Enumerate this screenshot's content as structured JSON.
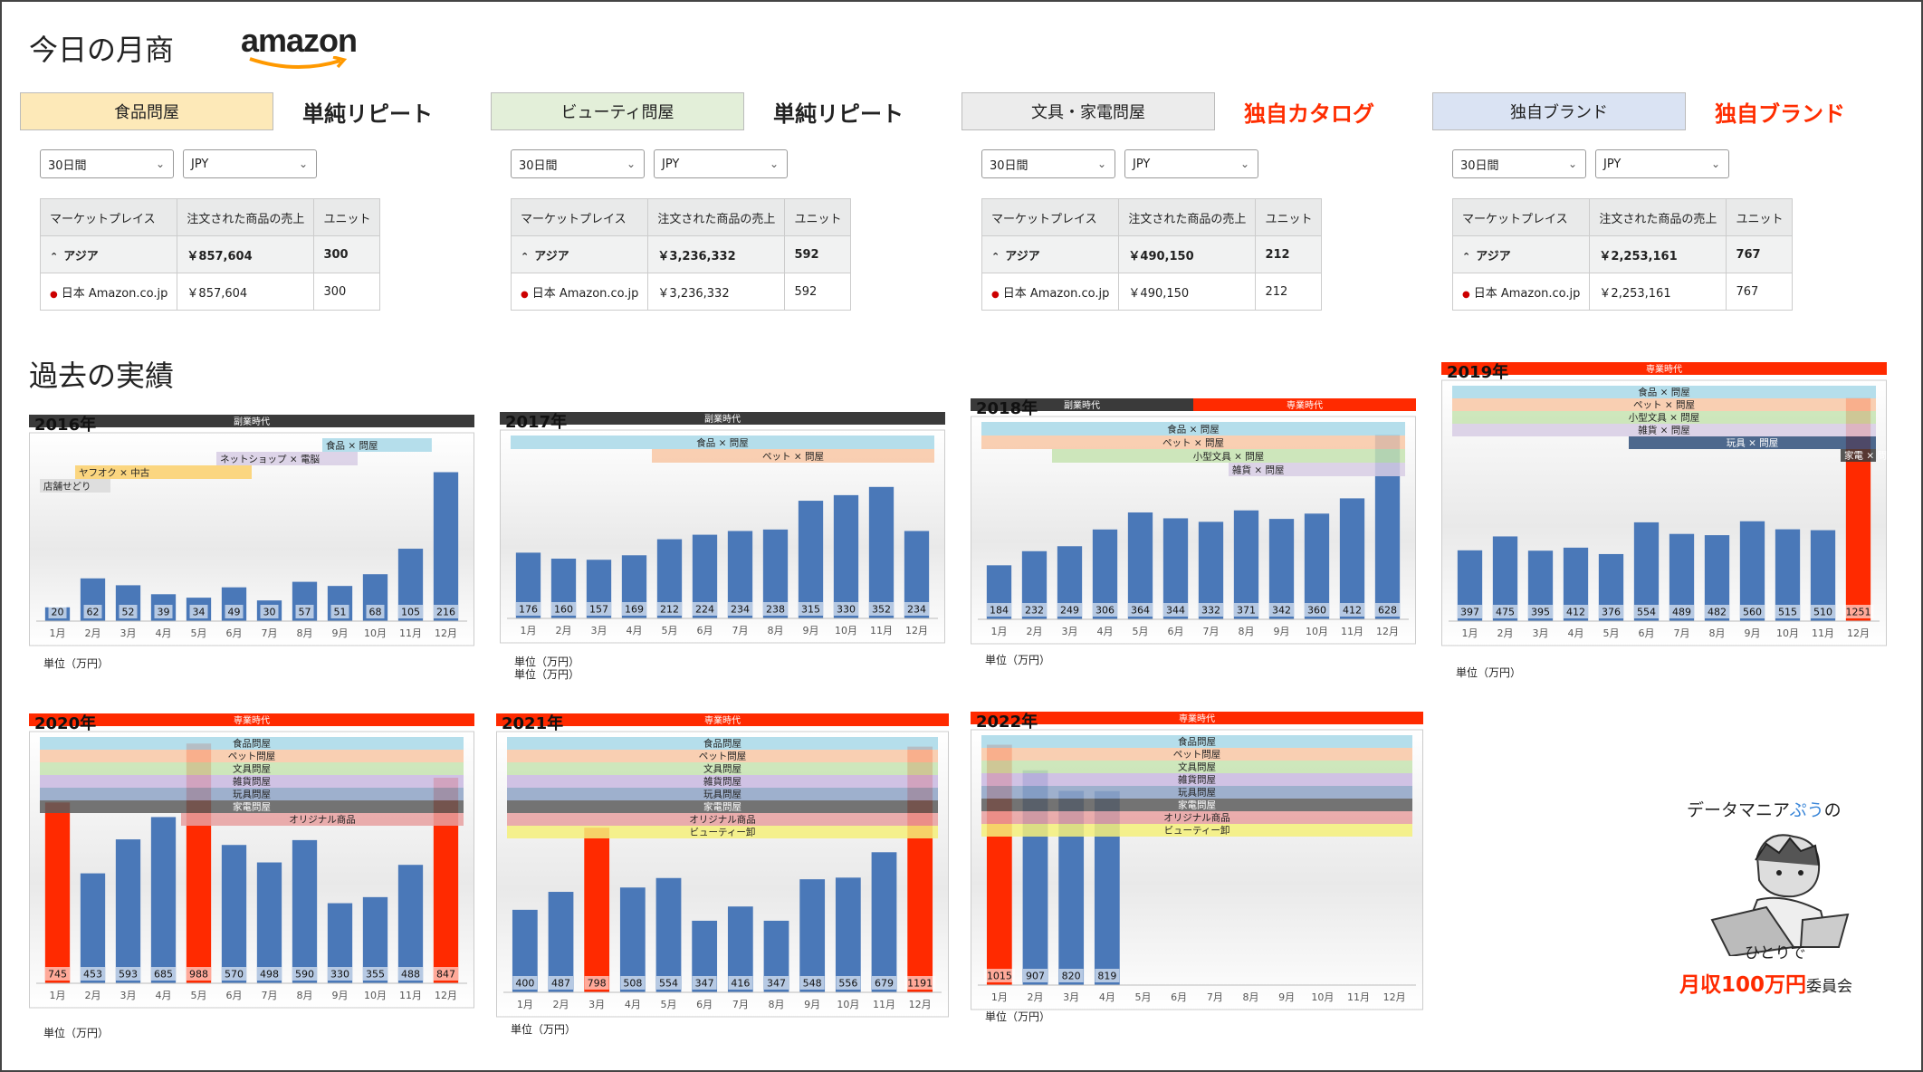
{
  "header": {
    "title": "今日の月商",
    "brand": "amazon"
  },
  "categories": [
    {
      "box": "食品問屋",
      "box_color": "#fde9b8",
      "label": "単純リピート",
      "label_color": "#222222",
      "period": "30日間",
      "currency": "JPY",
      "table": {
        "headers": [
          "マーケットプレイス",
          "注文された商品の売上",
          "ユニット"
        ],
        "rows": [
          [
            "アジア",
            "￥857,604",
            "300"
          ],
          [
            "日本 Amazon.co.jp",
            "￥857,604",
            "300"
          ]
        ]
      }
    },
    {
      "box": "ビューティ問屋",
      "box_color": "#e3efd9",
      "label": "単純リピート",
      "label_color": "#222222",
      "period": "30日間",
      "currency": "JPY",
      "table": {
        "headers": [
          "マーケットプレイス",
          "注文された商品の売上",
          "ユニット"
        ],
        "rows": [
          [
            "アジア",
            "￥3,236,332",
            "592"
          ],
          [
            "日本 Amazon.co.jp",
            "￥3,236,332",
            "592"
          ]
        ]
      }
    },
    {
      "box": "文具・家電問屋",
      "box_color": "#ececec",
      "label": "独自カタログ",
      "label_color": "#ff2d00",
      "period": "30日間",
      "currency": "JPY",
      "table": {
        "headers": [
          "マーケットプレイス",
          "注文された商品の売上",
          "ユニット"
        ],
        "rows": [
          [
            "アジア",
            "￥490,150",
            "212"
          ],
          [
            "日本 Amazon.co.jp",
            "￥490,150",
            "212"
          ]
        ]
      }
    },
    {
      "box": "独自ブランド",
      "box_color": "#dae3f3",
      "label": "独自ブランド",
      "label_color": "#ff2d00",
      "period": "30日間",
      "currency": "JPY",
      "table": {
        "headers": [
          "マーケットプレイス",
          "注文された商品の売上",
          "ユニット"
        ],
        "rows": [
          [
            "アジア",
            "￥2,253,161",
            "767"
          ],
          [
            "日本 Amazon.co.jp",
            "￥2,253,161",
            "767"
          ]
        ]
      }
    }
  ],
  "section_title": "過去の実績",
  "unit_label": "単位（万円）",
  "credit": {
    "line1a": "データマニア",
    "line1b": "ぷう",
    "line1c": "の",
    "line2": "ひとりで",
    "line3a": "月収100万円",
    "line3b": "委員会"
  },
  "colors": {
    "bar": "#4a78b8",
    "bar_highlight": "#ff2a00",
    "era_side": "#3a3a3a",
    "era_full": "#ff2a00"
  },
  "chart_data": [
    {
      "type": "bar",
      "title": "2016年",
      "eras": [
        {
          "label": "副業時代",
          "kind": "side",
          "span": [
            0,
            1
          ]
        }
      ],
      "categories": [
        "1月",
        "2月",
        "3月",
        "4月",
        "5月",
        "6月",
        "7月",
        "8月",
        "9月",
        "10月",
        "11月",
        "12月"
      ],
      "values": [
        20,
        62,
        52,
        39,
        34,
        49,
        30,
        57,
        51,
        68,
        105,
        216
      ],
      "ylim": [
        0,
        260
      ],
      "highlight": [],
      "tags": [
        {
          "label": "食品 × 問屋",
          "color": "#a8d8e8",
          "range": [
            8.5,
            11.6
          ]
        },
        {
          "label": "ネットショップ × 電脳",
          "color": "#d7cde4",
          "range": [
            5.5,
            9.5
          ]
        },
        {
          "label": "ヤフオク × 中古",
          "color": "#fbd06b",
          "range": [
            1.5,
            6.5
          ]
        },
        {
          "label": "店舗せどり",
          "color": "#d9d9d9",
          "range": [
            0.5,
            2.5
          ]
        }
      ]
    },
    {
      "type": "bar",
      "title": "2017年",
      "eras": [
        {
          "label": "副業時代",
          "kind": "side",
          "span": [
            0,
            1
          ]
        }
      ],
      "categories": [
        "1月",
        "2月",
        "3月",
        "4月",
        "5月",
        "6月",
        "7月",
        "8月",
        "9月",
        "10月",
        "11月",
        "12月"
      ],
      "values": [
        176,
        160,
        157,
        169,
        212,
        224,
        234,
        238,
        315,
        330,
        352,
        234
      ],
      "ylim": [
        0,
        480
      ],
      "highlight": [],
      "tags": [
        {
          "label": "食品 × 問屋",
          "color": "#a8d8e8",
          "range": [
            0.5,
            12.5
          ]
        },
        {
          "label": "ペット × 問屋",
          "color": "#f8c7a4",
          "range": [
            4.5,
            12.5
          ]
        }
      ]
    },
    {
      "type": "bar",
      "title": "2018年",
      "eras": [
        {
          "label": "副業時代",
          "kind": "side",
          "span": [
            0,
            0.5
          ]
        },
        {
          "label": "専業時代",
          "kind": "full",
          "span": [
            0.5,
            1
          ]
        }
      ],
      "categories": [
        "1月",
        "2月",
        "3月",
        "4月",
        "5月",
        "6月",
        "7月",
        "8月",
        "9月",
        "10月",
        "11月",
        "12月"
      ],
      "values": [
        184,
        232,
        249,
        306,
        364,
        344,
        332,
        371,
        342,
        360,
        412,
        628
      ],
      "ylim": [
        0,
        660
      ],
      "highlight": [],
      "tags": [
        {
          "label": "食品 × 問屋",
          "color": "#a8d8e8",
          "range": [
            0.5,
            12.5
          ]
        },
        {
          "label": "ペット × 問屋",
          "color": "#f8c7a4",
          "range": [
            0.5,
            12.5
          ]
        },
        {
          "label": "小型文具 × 問屋",
          "color": "#c5e3b0",
          "range": [
            2.5,
            12.5
          ]
        },
        {
          "label": "雑貨 × 問屋",
          "color": "#d7cde4",
          "range": [
            7.5,
            12.5
          ]
        }
      ]
    },
    {
      "type": "bar",
      "title": "2019年",
      "eras": [
        {
          "label": "専業時代",
          "kind": "full",
          "span": [
            0,
            1
          ]
        }
      ],
      "categories": [
        "1月",
        "2月",
        "3月",
        "4月",
        "5月",
        "6月",
        "7月",
        "8月",
        "9月",
        "10月",
        "11月",
        "12月"
      ],
      "values": [
        397,
        475,
        395,
        412,
        376,
        554,
        489,
        482,
        560,
        515,
        510,
        1251
      ],
      "ylim": [
        0,
        1300
      ],
      "highlight": [
        11
      ],
      "tags": [
        {
          "label": "食品 × 問屋",
          "color": "#a8d8e8",
          "range": [
            0.5,
            12.5
          ]
        },
        {
          "label": "ペット × 問屋",
          "color": "#f8c7a4",
          "range": [
            0.5,
            12.5
          ]
        },
        {
          "label": "小型文具 × 問屋",
          "color": "#c5e3b0",
          "range": [
            0.5,
            12.5
          ]
        },
        {
          "label": "雑貨 × 問屋",
          "color": "#d7cde4",
          "range": [
            0.5,
            12.5
          ]
        },
        {
          "label": "玩具 × 問屋",
          "color": "#2f4f7a",
          "range": [
            5.5,
            12.5
          ]
        },
        {
          "label": "家電 × 問屋",
          "color": "#3a3a3a",
          "range": [
            11.5,
            12.5
          ]
        }
      ]
    },
    {
      "type": "bar",
      "title": "2020年",
      "eras": [
        {
          "label": "専業時代",
          "kind": "full",
          "span": [
            0,
            1
          ]
        }
      ],
      "categories": [
        "1月",
        "2月",
        "3月",
        "4月",
        "5月",
        "6月",
        "7月",
        "8月",
        "9月",
        "10月",
        "11月",
        "12月"
      ],
      "values": [
        745,
        453,
        593,
        685,
        988,
        570,
        498,
        590,
        330,
        355,
        488,
        847
      ],
      "ylim": [
        0,
        1000
      ],
      "highlight": [
        0,
        4,
        11
      ],
      "tags": [
        {
          "label": "食品問屋",
          "color": "#a8d8e8",
          "range": [
            0.5,
            12.5
          ]
        },
        {
          "label": "ペット問屋",
          "color": "#f8c7a4",
          "range": [
            0.5,
            12.5
          ]
        },
        {
          "label": "文具問屋",
          "color": "#c5e3b0",
          "range": [
            0.5,
            12.5
          ]
        },
        {
          "label": "雑貨問屋",
          "color": "#c9b8e0",
          "range": [
            0.5,
            12.5
          ]
        },
        {
          "label": "玩具問屋",
          "color": "#8ea3c6",
          "range": [
            0.5,
            12.5
          ]
        },
        {
          "label": "家電問屋",
          "color": "#5c5c5c",
          "range": [
            0.5,
            12.5
          ]
        },
        {
          "label": "オリジナル商品",
          "color": "#e8a0a0",
          "range": [
            4.5,
            12.5
          ]
        }
      ]
    },
    {
      "type": "bar",
      "title": "2021年",
      "eras": [
        {
          "label": "専業時代",
          "kind": "full",
          "span": [
            0,
            1
          ]
        }
      ],
      "categories": [
        "1月",
        "2月",
        "3月",
        "4月",
        "5月",
        "6月",
        "7月",
        "8月",
        "9月",
        "10月",
        "11月",
        "12月"
      ],
      "values": [
        400,
        487,
        798,
        508,
        554,
        347,
        416,
        347,
        548,
        556,
        679,
        1191
      ],
      "ylim": [
        0,
        1220
      ],
      "highlight": [
        2,
        11
      ],
      "tags": [
        {
          "label": "食品問屋",
          "color": "#a8d8e8",
          "range": [
            0.5,
            12.5
          ]
        },
        {
          "label": "ペット問屋",
          "color": "#f8c7a4",
          "range": [
            0.5,
            12.5
          ]
        },
        {
          "label": "文具問屋",
          "color": "#c5e3b0",
          "range": [
            0.5,
            12.5
          ]
        },
        {
          "label": "雑貨問屋",
          "color": "#c9b8e0",
          "range": [
            0.5,
            12.5
          ]
        },
        {
          "label": "玩具問屋",
          "color": "#8ea3c6",
          "range": [
            0.5,
            12.5
          ]
        },
        {
          "label": "家電問屋",
          "color": "#5c5c5c",
          "range": [
            0.5,
            12.5
          ]
        },
        {
          "label": "オリジナル商品",
          "color": "#e8a0a0",
          "range": [
            0.5,
            12.5
          ]
        },
        {
          "label": "ビューティー卸",
          "color": "#f4f07a",
          "range": [
            0.5,
            12.5
          ]
        }
      ]
    },
    {
      "type": "bar",
      "title": "2022年",
      "eras": [
        {
          "label": "専業時代",
          "kind": "full",
          "span": [
            0,
            1
          ]
        }
      ],
      "categories": [
        "1月",
        "2月",
        "3月",
        "4月",
        "5月",
        "6月",
        "7月",
        "8月",
        "9月",
        "10月",
        "11月",
        "12月"
      ],
      "values": [
        1015,
        907,
        820,
        819,
        null,
        null,
        null,
        null,
        null,
        null,
        null,
        null
      ],
      "ylim": [
        0,
        1040
      ],
      "highlight": [
        0
      ],
      "tags": [
        {
          "label": "食品問屋",
          "color": "#a8d8e8",
          "range": [
            0.5,
            12.5
          ]
        },
        {
          "label": "ペット問屋",
          "color": "#f8c7a4",
          "range": [
            0.5,
            12.5
          ]
        },
        {
          "label": "文具問屋",
          "color": "#c5e3b0",
          "range": [
            0.5,
            12.5
          ]
        },
        {
          "label": "雑貨問屋",
          "color": "#c9b8e0",
          "range": [
            0.5,
            12.5
          ]
        },
        {
          "label": "玩具問屋",
          "color": "#8ea3c6",
          "range": [
            0.5,
            12.5
          ]
        },
        {
          "label": "家電問屋",
          "color": "#5c5c5c",
          "range": [
            0.5,
            12.5
          ]
        },
        {
          "label": "オリジナル商品",
          "color": "#e8a0a0",
          "range": [
            0.5,
            12.5
          ]
        },
        {
          "label": "ビューティー卸",
          "color": "#f4f07a",
          "range": [
            0.5,
            12.5
          ]
        }
      ]
    }
  ]
}
